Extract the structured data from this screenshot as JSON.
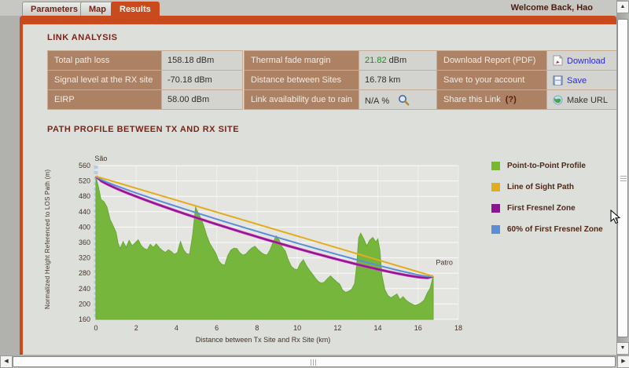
{
  "header": {
    "tabs": [
      {
        "label": "Parameters",
        "active": false
      },
      {
        "label": "Map",
        "active": false
      },
      {
        "label": "Results",
        "active": true
      }
    ],
    "welcome": "Welcome Back, Hao"
  },
  "link_analysis": {
    "title": "LINK ANALYSIS",
    "tables": [
      {
        "rows": [
          {
            "label": "Total path loss",
            "value": "158.18",
            "unit": "dBm"
          },
          {
            "label": "Signal level at the RX site",
            "value": "-70.18",
            "unit": "dBm"
          },
          {
            "label": "EIRP",
            "value": "58.00",
            "unit": "dBm"
          }
        ]
      },
      {
        "rows": [
          {
            "label": "Thermal fade margin",
            "value": "21.82",
            "unit": "dBm",
            "value_color": "#1e8a1e"
          },
          {
            "label": "Distance between Sites",
            "value": "16.78",
            "unit": "km"
          },
          {
            "label": "Link availability due to rain",
            "value": "N/A",
            "unit": "%"
          }
        ]
      },
      {
        "rows": [
          {
            "label": "Download Report (PDF)",
            "action": "Download",
            "link_color": "#2a2ad0"
          },
          {
            "label": "Save to your account",
            "action": "Save",
            "link_color": "#2a2ad0"
          },
          {
            "label": "Share this Link",
            "hint": "(?)",
            "action": "Make URL",
            "link_color": "#333333"
          }
        ]
      }
    ]
  },
  "path_profile": {
    "title": "PATH PROFILE BETWEEN TX AND RX SITE",
    "legend": [
      {
        "label": "Point-to-Point Profile",
        "color": "#76b82f"
      },
      {
        "label": "Line of Sight Path",
        "color": "#e3ac1e"
      },
      {
        "label": "First Fresnel Zone",
        "color": "#8d1390"
      },
      {
        "label": "60% of First Fresnel Zone",
        "color": "#5b8ed6"
      }
    ]
  },
  "chart_data": {
    "type": "area",
    "title": "PATH PROFILE BETWEEN TX AND RX SITE",
    "xlabel": "Distance between Tx Site and Rx Site (km)",
    "ylabel": "Normalized Height Referenced to LOS Path (m)",
    "xlim": [
      0,
      18
    ],
    "ylim": [
      160,
      560
    ],
    "xticks": [
      0,
      2,
      4,
      6,
      8,
      10,
      12,
      14,
      16,
      18
    ],
    "yticks": [
      560,
      520,
      480,
      440,
      400,
      360,
      320,
      280,
      240,
      200,
      160
    ],
    "grid": true,
    "plot_bg": "#e4e5e1",
    "tick_color": "#44332a",
    "marker_line": {
      "at_km": 0,
      "color": "#b8cbe4"
    },
    "sites": [
      {
        "name": "São",
        "km": 0,
        "label_km": 0.25,
        "label_m": 572
      },
      {
        "name": "Patro",
        "km": 16.75,
        "label_km": 17.3,
        "label_m": 302
      }
    ],
    "terrain": {
      "name": "Point-to-Point Profile",
      "fill": "#77b63c",
      "stroke": "#69a835",
      "points": [
        [
          0,
          530
        ],
        [
          0.12,
          505
        ],
        [
          0.25,
          472
        ],
        [
          0.4,
          466
        ],
        [
          0.55,
          452
        ],
        [
          0.7,
          420
        ],
        [
          0.85,
          404
        ],
        [
          1.0,
          386
        ],
        [
          1.1,
          358
        ],
        [
          1.2,
          344
        ],
        [
          1.35,
          362
        ],
        [
          1.5,
          347
        ],
        [
          1.65,
          365
        ],
        [
          1.8,
          351
        ],
        [
          1.95,
          359
        ],
        [
          2.1,
          367
        ],
        [
          2.25,
          352
        ],
        [
          2.4,
          344
        ],
        [
          2.55,
          341
        ],
        [
          2.7,
          355
        ],
        [
          2.85,
          347
        ],
        [
          3.0,
          356
        ],
        [
          3.15,
          346
        ],
        [
          3.3,
          339
        ],
        [
          3.45,
          334
        ],
        [
          3.6,
          341
        ],
        [
          3.75,
          336
        ],
        [
          3.9,
          329
        ],
        [
          4.05,
          334
        ],
        [
          4.2,
          362
        ],
        [
          4.35,
          341
        ],
        [
          4.5,
          331
        ],
        [
          4.65,
          329
        ],
        [
          4.8,
          378
        ],
        [
          4.95,
          452
        ],
        [
          5.05,
          440
        ],
        [
          5.2,
          424
        ],
        [
          5.35,
          404
        ],
        [
          5.5,
          378
        ],
        [
          5.65,
          358
        ],
        [
          5.8,
          345
        ],
        [
          5.95,
          332
        ],
        [
          6.1,
          312
        ],
        [
          6.25,
          303
        ],
        [
          6.4,
          301
        ],
        [
          6.55,
          326
        ],
        [
          6.7,
          340
        ],
        [
          6.85,
          345
        ],
        [
          7.0,
          344
        ],
        [
          7.15,
          333
        ],
        [
          7.3,
          327
        ],
        [
          7.45,
          330
        ],
        [
          7.6,
          339
        ],
        [
          7.75,
          346
        ],
        [
          7.9,
          350
        ],
        [
          8.05,
          341
        ],
        [
          8.2,
          334
        ],
        [
          8.35,
          329
        ],
        [
          8.5,
          327
        ],
        [
          8.65,
          341
        ],
        [
          8.8,
          360
        ],
        [
          8.95,
          377
        ],
        [
          9.1,
          366
        ],
        [
          9.25,
          348
        ],
        [
          9.4,
          338
        ],
        [
          9.55,
          315
        ],
        [
          9.7,
          298
        ],
        [
          9.85,
          291
        ],
        [
          10.0,
          289
        ],
        [
          10.15,
          305
        ],
        [
          10.3,
          315
        ],
        [
          10.45,
          300
        ],
        [
          10.6,
          288
        ],
        [
          10.75,
          278
        ],
        [
          10.9,
          267
        ],
        [
          11.05,
          258
        ],
        [
          11.2,
          254
        ],
        [
          11.35,
          257
        ],
        [
          11.5,
          266
        ],
        [
          11.65,
          273
        ],
        [
          11.8,
          265
        ],
        [
          11.95,
          258
        ],
        [
          12.1,
          252
        ],
        [
          12.25,
          236
        ],
        [
          12.4,
          230
        ],
        [
          12.55,
          233
        ],
        [
          12.7,
          238
        ],
        [
          12.85,
          253
        ],
        [
          12.95,
          300
        ],
        [
          13.05,
          372
        ],
        [
          13.15,
          384
        ],
        [
          13.3,
          369
        ],
        [
          13.45,
          351
        ],
        [
          13.6,
          366
        ],
        [
          13.75,
          373
        ],
        [
          13.9,
          361
        ],
        [
          14.0,
          369
        ],
        [
          14.1,
          340
        ],
        [
          14.2,
          275
        ],
        [
          14.35,
          237
        ],
        [
          14.5,
          222
        ],
        [
          14.65,
          216
        ],
        [
          14.8,
          221
        ],
        [
          14.95,
          226
        ],
        [
          15.1,
          211
        ],
        [
          15.25,
          219
        ],
        [
          15.4,
          210
        ],
        [
          15.55,
          204
        ],
        [
          15.7,
          200
        ],
        [
          15.85,
          196
        ],
        [
          16.0,
          199
        ],
        [
          16.15,
          203
        ],
        [
          16.3,
          210
        ],
        [
          16.45,
          228
        ],
        [
          16.6,
          241
        ],
        [
          16.75,
          272
        ]
      ]
    },
    "los": {
      "name": "Line of Sight Path",
      "color": "#e3ac1e",
      "from": [
        0,
        532
      ],
      "to": [
        16.75,
        272
      ]
    },
    "fresnel_first": {
      "name": "First Fresnel Zone",
      "color": "#8d1390",
      "halo_color": "#c83ab8",
      "max_sag_m": 33
    },
    "fresnel_60": {
      "name": "60% of First Fresnel Zone",
      "color": "#5b8ed6",
      "max_sag_m": 19
    }
  },
  "icons": {
    "up_arrow": "▲",
    "down_arrow": "▼",
    "left_arrow": "◀",
    "right_arrow": "▶"
  }
}
